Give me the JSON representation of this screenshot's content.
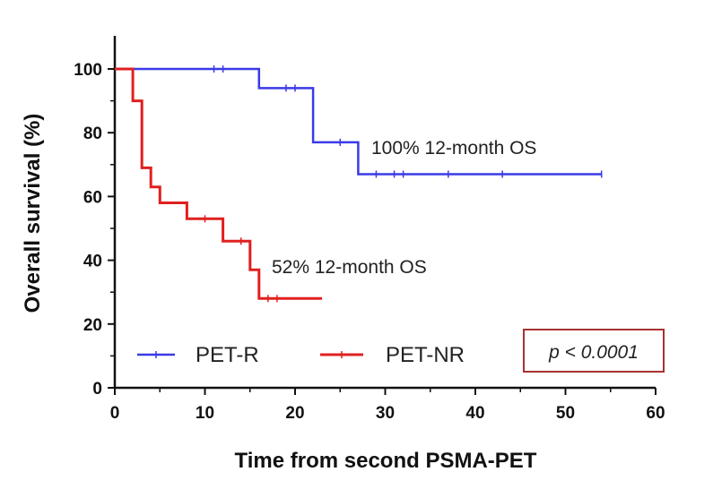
{
  "chart_data": {
    "type": "line",
    "title": "",
    "xlabel": "Time from second PSMA-PET",
    "ylabel": "Overall survival (%)",
    "xlim": [
      0,
      60
    ],
    "ylim": [
      0,
      100
    ],
    "xticks": [
      0,
      10,
      20,
      30,
      40,
      50,
      60
    ],
    "yticks": [
      0,
      20,
      40,
      60,
      80,
      100
    ],
    "grid": false,
    "legend_position": "bottom-left",
    "series": [
      {
        "name": "PET-R",
        "color": "#3a3ae8",
        "style": "step",
        "points": [
          [
            0,
            100
          ],
          [
            16,
            100
          ],
          [
            16,
            94
          ],
          [
            22,
            94
          ],
          [
            22,
            77
          ],
          [
            27,
            77
          ],
          [
            27,
            67
          ],
          [
            54,
            67
          ]
        ],
        "censored": [
          [
            11,
            100
          ],
          [
            12,
            100
          ],
          [
            19,
            94
          ],
          [
            20,
            94
          ],
          [
            25,
            77
          ],
          [
            29,
            67
          ],
          [
            31,
            67
          ],
          [
            32,
            67
          ],
          [
            37,
            67
          ],
          [
            43,
            67
          ],
          [
            54,
            67
          ]
        ]
      },
      {
        "name": "PET-NR",
        "color": "#e02020",
        "style": "step",
        "points": [
          [
            0,
            100
          ],
          [
            2,
            100
          ],
          [
            2,
            90
          ],
          [
            3,
            90
          ],
          [
            3,
            69
          ],
          [
            4,
            69
          ],
          [
            4,
            63
          ],
          [
            5,
            63
          ],
          [
            5,
            58
          ],
          [
            8,
            58
          ],
          [
            8,
            53
          ],
          [
            12,
            53
          ],
          [
            12,
            46
          ],
          [
            15,
            46
          ],
          [
            15,
            37
          ],
          [
            16,
            37
          ],
          [
            16,
            28
          ],
          [
            23,
            28
          ]
        ],
        "censored": [
          [
            10,
            53
          ],
          [
            14,
            46
          ],
          [
            17,
            28
          ],
          [
            18,
            28
          ]
        ]
      }
    ],
    "annotations": [
      {
        "text": "100% 12-month OS"
      },
      {
        "text": "52% 12-month OS"
      }
    ],
    "p_value_text": "p < 0.0001"
  }
}
